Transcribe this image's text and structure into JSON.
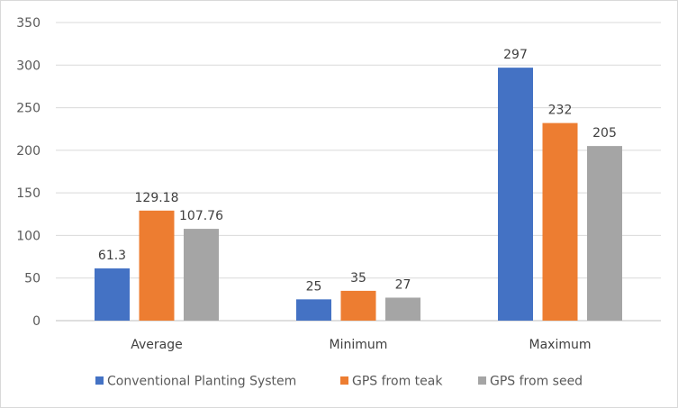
{
  "chart_data": {
    "type": "bar",
    "title": "",
    "xlabel": "",
    "ylabel": "",
    "categories": [
      "Average",
      "Minimum",
      "Maximum"
    ],
    "series": [
      {
        "name": "Conventional Planting System",
        "color": "#4472c4",
        "values": [
          61.3,
          25,
          297
        ],
        "labels": [
          "61.3",
          "25",
          "297"
        ]
      },
      {
        "name": "GPS from teak",
        "color": "#ed7d31",
        "values": [
          129.18,
          35,
          232
        ],
        "labels": [
          "129.18",
          "35",
          "232"
        ]
      },
      {
        "name": "GPS from seed",
        "color": "#a5a5a5",
        "values": [
          107.76,
          27,
          205
        ],
        "labels": [
          "107.76",
          "27",
          "205"
        ]
      }
    ],
    "ylim": [
      0,
      350
    ],
    "yticks": [
      "0",
      "50",
      "100",
      "150",
      "200",
      "250",
      "300",
      "350"
    ],
    "grid": true,
    "legend_position": "bottom"
  }
}
